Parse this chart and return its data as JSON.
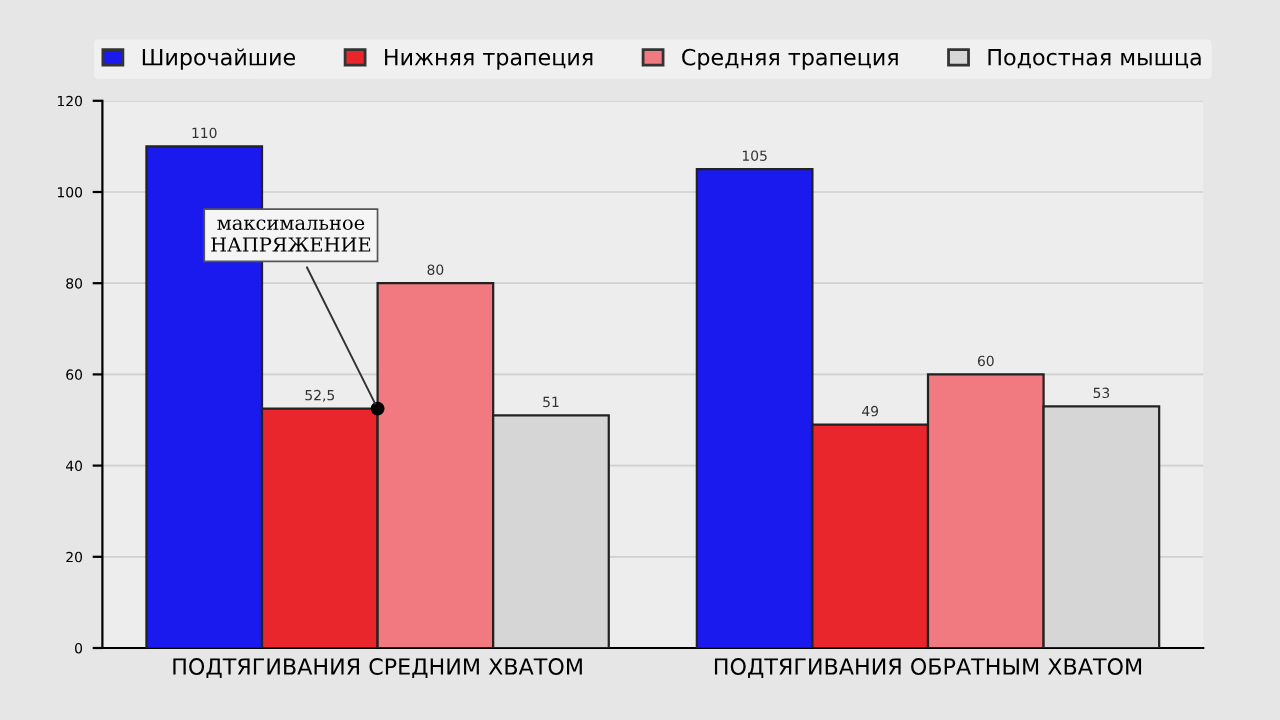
{
  "chart_data": {
    "type": "bar",
    "categories": [
      "ПОДТЯГИВАНИЯ СРЕДНИМ ХВАТОМ",
      "ПОДТЯГИВАНИЯ ОБРАТНЫМ ХВАТОМ"
    ],
    "series": [
      {
        "name": "Широчайшие",
        "color": "#1a1aee",
        "values": [
          110,
          105
        ],
        "value_labels": [
          "110",
          "105"
        ]
      },
      {
        "name": "Нижняя трапеция",
        "color": "#e8262b",
        "values": [
          52.5,
          49
        ],
        "value_labels": [
          "52,5",
          "49"
        ]
      },
      {
        "name": "Средняя трапеция",
        "color": "#f07a80",
        "values": [
          80,
          60
        ],
        "value_labels": [
          "80",
          "60"
        ]
      },
      {
        "name": "Подостная мышца",
        "color": "#d6d6d6",
        "values": [
          51,
          53
        ],
        "value_labels": [
          "51",
          "53"
        ]
      }
    ],
    "ylim": [
      0,
      120
    ],
    "yticks": [
      0,
      20,
      40,
      60,
      80,
      100,
      120
    ],
    "grid": "y",
    "legend": "top",
    "annotations": [
      {
        "text": "максимальное\nНАПРЯЖЕНИЕ",
        "x": "ПОДТЯГИВАНИЯ СРЕДНИМ ХВАТОМ",
        "y": 52.5
      }
    ]
  }
}
